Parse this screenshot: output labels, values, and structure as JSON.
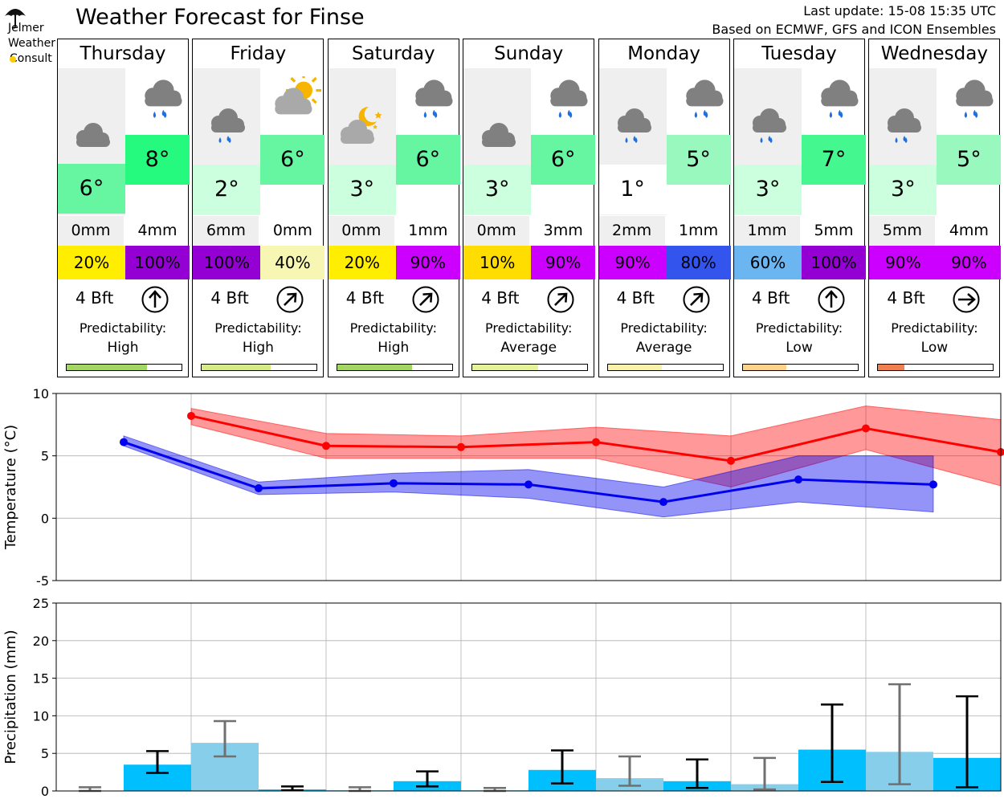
{
  "logo": {
    "lines": [
      "Jelmer",
      "Weather",
      "Consult"
    ],
    "umbrella_icon": "umbrella-icon",
    "sun_icon": "sun-icon"
  },
  "header": {
    "title": "Weather Forecast for Finse",
    "last_update": "Last update: 15-08 15:35 UTC",
    "source": "Based on ECMWF, GFS and ICON Ensembles"
  },
  "days": [
    {
      "name": "Thursday",
      "night_temp": "6°",
      "day_temp": "8°",
      "night_color": "#66f5a0",
      "day_color": "#25fa7f",
      "night_icon": "cloud-icon",
      "day_icon": "rain-cloud-icon",
      "night_precip": "0mm",
      "day_precip": "4mm",
      "night_prob": "20%",
      "day_prob": "100%",
      "night_prob_color": "#ffee00",
      "day_prob_color": "#9400d3",
      "wind": "4 Bft",
      "wind_arrow_icon": "arrow-north-icon",
      "wind_angle": 0,
      "pred_label": "Predictability:",
      "pred_value": "High",
      "pred_fraction": 0.7,
      "pred_color": "#a4d666"
    },
    {
      "name": "Friday",
      "night_temp": "2°",
      "day_temp": "6°",
      "night_color": "#ccffdd",
      "day_color": "#66f5a0",
      "night_icon": "rain-cloud-icon",
      "day_icon": "partly-sunny-icon",
      "night_precip": "6mm",
      "day_precip": "0mm",
      "night_prob": "100%",
      "day_prob": "40%",
      "night_prob_color": "#9400d3",
      "day_prob_color": "#f7f7b3",
      "wind": "4 Bft",
      "wind_arrow_icon": "arrow-northeast-icon",
      "wind_angle": 45,
      "pred_label": "Predictability:",
      "pred_value": "High",
      "pred_fraction": 0.6,
      "pred_color": "#d6ea8a"
    },
    {
      "name": "Saturday",
      "night_temp": "3°",
      "day_temp": "6°",
      "night_color": "#ccffdd",
      "day_color": "#66f5a0",
      "night_icon": "partly-cloudy-night-icon",
      "day_icon": "rain-cloud-icon",
      "night_precip": "0mm",
      "day_precip": "1mm",
      "night_prob": "20%",
      "day_prob": "90%",
      "night_prob_color": "#ffee00",
      "day_prob_color": "#cc00ff",
      "wind": "4 Bft",
      "wind_arrow_icon": "arrow-northeast-icon",
      "wind_angle": 45,
      "pred_label": "Predictability:",
      "pred_value": "High",
      "pred_fraction": 0.65,
      "pred_color": "#a4d666"
    },
    {
      "name": "Sunday",
      "night_temp": "3°",
      "day_temp": "6°",
      "night_color": "#ccffdd",
      "day_color": "#66f5a0",
      "night_icon": "cloud-icon",
      "day_icon": "rain-cloud-icon",
      "night_precip": "0mm",
      "day_precip": "3mm",
      "night_prob": "10%",
      "day_prob": "90%",
      "night_prob_color": "#ffdd00",
      "day_prob_color": "#cc00ff",
      "wind": "4 Bft",
      "wind_arrow_icon": "arrow-northeast-icon",
      "wind_angle": 45,
      "pred_label": "Predictability:",
      "pred_value": "Average",
      "pred_fraction": 0.57,
      "pred_color": "#e6f29a"
    },
    {
      "name": "Monday",
      "night_temp": "1°",
      "day_temp": "5°",
      "night_color": "#ffffff",
      "day_color": "#99f8bd",
      "night_icon": "rain-cloud-icon",
      "day_icon": "rain-cloud-icon",
      "night_precip": "2mm",
      "day_precip": "1mm",
      "night_prob": "90%",
      "day_prob": "80%",
      "night_prob_color": "#cc00ff",
      "day_prob_color": "#3355ee",
      "wind": "4 Bft",
      "wind_arrow_icon": "arrow-northeast-icon",
      "wind_angle": 45,
      "pred_label": "Predictability:",
      "pred_value": "Average",
      "pred_fraction": 0.47,
      "pred_color": "#f8f3a8"
    },
    {
      "name": "Tuesday",
      "night_temp": "3°",
      "day_temp": "7°",
      "night_color": "#ccffdd",
      "day_color": "#44f78e",
      "night_icon": "rain-cloud-icon",
      "day_icon": "rain-cloud-icon",
      "night_precip": "1mm",
      "day_precip": "5mm",
      "night_prob": "60%",
      "day_prob": "100%",
      "night_prob_color": "#6bb6f0",
      "day_prob_color": "#9400d3",
      "wind": "4 Bft",
      "wind_arrow_icon": "arrow-north-icon",
      "wind_angle": 0,
      "pred_label": "Predictability:",
      "pred_value": "Low",
      "pred_fraction": 0.38,
      "pred_color": "#fdd28a"
    },
    {
      "name": "Wednesday",
      "night_temp": "3°",
      "day_temp": "5°",
      "night_color": "#ccffdd",
      "day_color": "#99f8bd",
      "night_icon": "rain-cloud-icon",
      "day_icon": "rain-cloud-icon",
      "night_precip": "5mm",
      "day_precip": "4mm",
      "night_prob": "90%",
      "day_prob": "90%",
      "night_prob_color": "#cc00ff",
      "day_prob_color": "#cc00ff",
      "wind": "4 Bft",
      "wind_arrow_icon": "arrow-east-icon",
      "wind_angle": 90,
      "pred_label": "Predictability:",
      "pred_value": "Low",
      "pred_fraction": 0.23,
      "pred_color": "#f08050"
    }
  ],
  "chart_data": [
    {
      "type": "line",
      "ylabel": "Temperature (°C)",
      "ylim": [
        -5,
        10
      ],
      "yticks": [
        -5,
        0,
        5,
        10
      ],
      "grid": true,
      "x": [
        0.5,
        1,
        1.5,
        2,
        2.5,
        3,
        3.5,
        4,
        4.5,
        5,
        5.5,
        6,
        6.5,
        7
      ],
      "series": [
        {
          "name": "",
          "color": "#ff0000",
          "x": [
            1,
            2,
            3,
            4,
            5,
            6,
            7
          ],
          "values": [
            8.2,
            5.8,
            5.7,
            6.1,
            4.6,
            7.2,
            5.3
          ],
          "band_low": [
            7.5,
            4.8,
            4.8,
            4.8,
            2.5,
            5.5,
            2.6
          ],
          "band_high": [
            8.8,
            6.8,
            6.6,
            7.3,
            6.6,
            9.0,
            7.9
          ]
        },
        {
          "name": "",
          "color": "#0000ee",
          "x": [
            0.5,
            1.5,
            2.5,
            3.5,
            4.5,
            5.5,
            6.5
          ],
          "values": [
            6.1,
            2.4,
            2.8,
            2.7,
            1.3,
            3.1,
            2.7
          ],
          "band_low": [
            5.8,
            1.9,
            2.1,
            1.6,
            0.1,
            1.3,
            0.5
          ],
          "band_high": [
            6.6,
            2.9,
            3.6,
            3.9,
            2.5,
            5.0,
            5.0
          ]
        }
      ]
    },
    {
      "type": "bar",
      "ylabel": "Precipitation (mm)",
      "ylim": [
        0,
        25
      ],
      "yticks": [
        0,
        5,
        10,
        15,
        20,
        25
      ],
      "grid": true,
      "bars": [
        {
          "x": 0.25,
          "value": 0.0,
          "err_low": 0.0,
          "err_high": 0.5,
          "color": "#87ceeb",
          "err_color": "#707070"
        },
        {
          "x": 0.75,
          "value": 3.5,
          "err_low": 2.4,
          "err_high": 5.3,
          "color": "#00bfff",
          "err_color": "#000000"
        },
        {
          "x": 1.25,
          "value": 6.4,
          "err_low": 4.6,
          "err_high": 9.3,
          "color": "#87ceeb",
          "err_color": "#707070"
        },
        {
          "x": 1.75,
          "value": 0.2,
          "err_low": 0.1,
          "err_high": 0.6,
          "color": "#00bfff",
          "err_color": "#000000"
        },
        {
          "x": 2.25,
          "value": 0.1,
          "err_low": 0.0,
          "err_high": 0.5,
          "color": "#87ceeb",
          "err_color": "#707070"
        },
        {
          "x": 2.75,
          "value": 1.3,
          "err_low": 0.6,
          "err_high": 2.6,
          "color": "#00bfff",
          "err_color": "#000000"
        },
        {
          "x": 3.25,
          "value": 0.1,
          "err_low": 0.0,
          "err_high": 0.4,
          "color": "#87ceeb",
          "err_color": "#707070"
        },
        {
          "x": 3.75,
          "value": 2.8,
          "err_low": 1.0,
          "err_high": 5.4,
          "color": "#00bfff",
          "err_color": "#000000"
        },
        {
          "x": 4.25,
          "value": 1.7,
          "err_low": 0.7,
          "err_high": 4.6,
          "color": "#87ceeb",
          "err_color": "#707070"
        },
        {
          "x": 4.75,
          "value": 1.3,
          "err_low": 0.4,
          "err_high": 4.2,
          "color": "#00bfff",
          "err_color": "#000000"
        },
        {
          "x": 5.25,
          "value": 0.9,
          "err_low": 0.2,
          "err_high": 4.4,
          "color": "#87ceeb",
          "err_color": "#707070"
        },
        {
          "x": 5.75,
          "value": 5.5,
          "err_low": 1.2,
          "err_high": 11.5,
          "color": "#00bfff",
          "err_color": "#000000"
        },
        {
          "x": 6.25,
          "value": 5.2,
          "err_low": 0.9,
          "err_high": 14.2,
          "color": "#87ceeb",
          "err_color": "#707070"
        },
        {
          "x": 6.75,
          "value": 4.4,
          "err_low": 0.5,
          "err_high": 12.6,
          "color": "#00bfff",
          "err_color": "#000000"
        }
      ]
    }
  ]
}
